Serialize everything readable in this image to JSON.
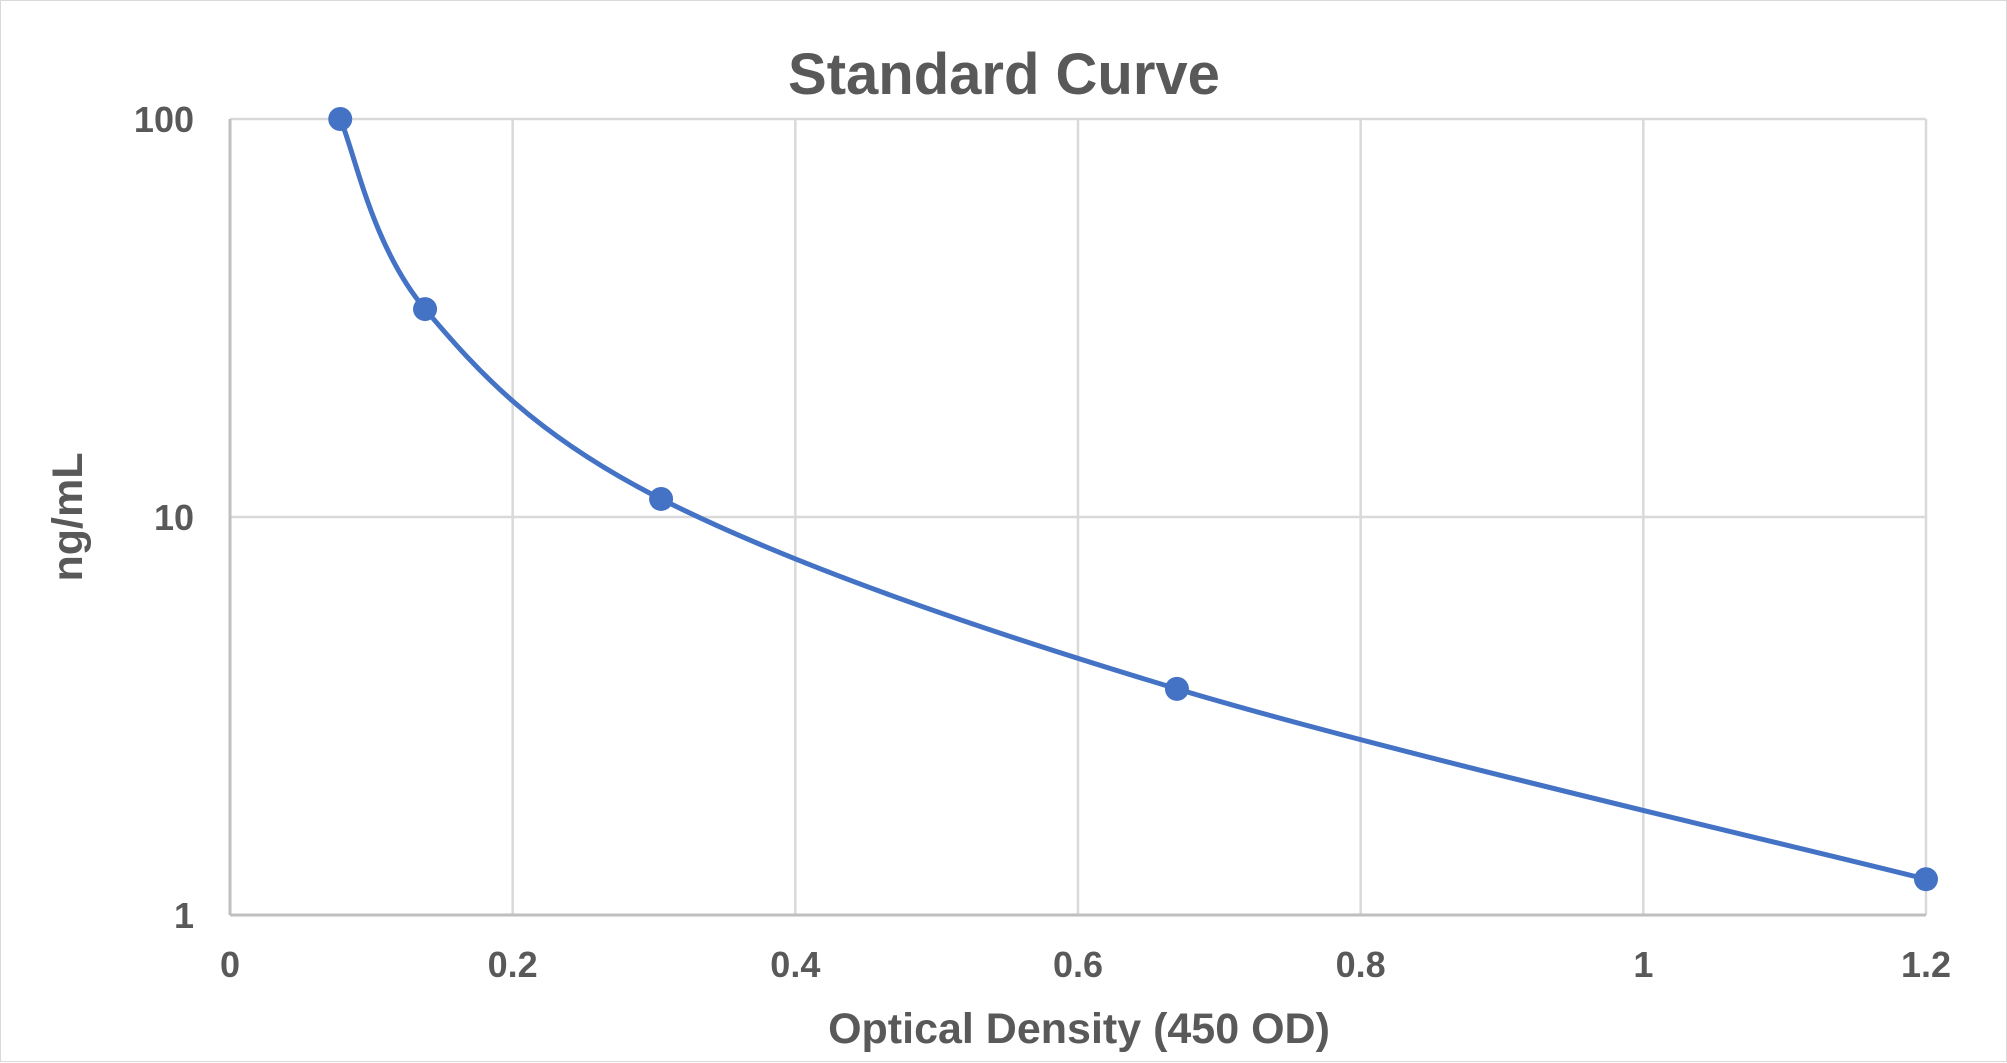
{
  "chart_data": {
    "type": "scatter",
    "title": "Standard Curve",
    "xlabel": "Optical Density (450 OD)",
    "ylabel": "ng/mL",
    "xlim": [
      0,
      1.2
    ],
    "ylim": [
      1,
      100
    ],
    "yscale": "log",
    "xticks": [
      "0",
      "0.2",
      "0.4",
      "0.6",
      "0.8",
      "1",
      "1.2"
    ],
    "yticks": [
      "1",
      "10",
      "100"
    ],
    "xtick_values": [
      0,
      0.2,
      0.4,
      0.6,
      0.8,
      1,
      1.2
    ],
    "ytick_values": [
      1,
      10,
      100
    ],
    "grid": true,
    "line_style": "smooth",
    "series": [
      {
        "x": [
          0.078,
          0.138,
          0.305,
          0.67,
          1.2
        ],
        "y": [
          100,
          33.3,
          11.1,
          3.7,
          1.23
        ],
        "color": "#4472c4"
      }
    ]
  }
}
